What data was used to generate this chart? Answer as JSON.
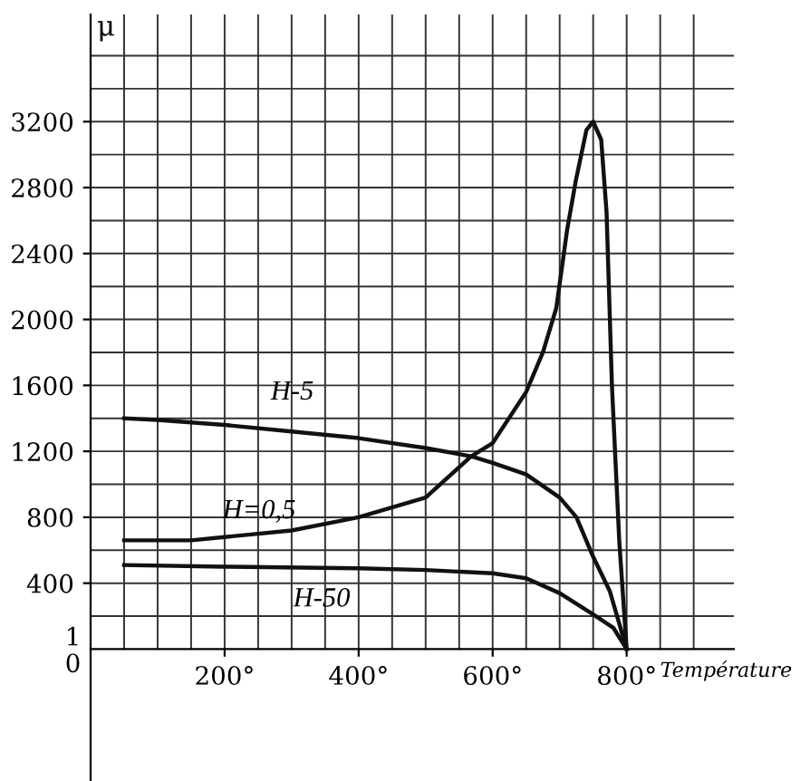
{
  "chart_data": {
    "type": "line",
    "xlabel": "Température",
    "ylabel": "μ",
    "series": [
      {
        "name": "H-5",
        "color": "#111111",
        "x": [
          50,
          100,
          200,
          300,
          400,
          500,
          568,
          600,
          650,
          700,
          725,
          750,
          775,
          800
        ],
        "values": [
          1400,
          1390,
          1360,
          1320,
          1280,
          1220,
          1170,
          1130,
          1060,
          920,
          800,
          560,
          350,
          0
        ]
      },
      {
        "name": "H=0,5",
        "color": "#111111",
        "x": [
          50,
          150,
          200,
          300,
          400,
          500,
          568,
          600,
          650,
          675,
          695,
          711,
          724,
          740,
          750,
          762,
          770,
          778,
          789,
          800
        ],
        "values": [
          660,
          660,
          680,
          720,
          800,
          920,
          1170,
          1250,
          1560,
          1800,
          2070,
          2540,
          2840,
          3150,
          3200,
          3090,
          2650,
          1600,
          650,
          0
        ]
      },
      {
        "name": "H-50",
        "color": "#111111",
        "x": [
          50,
          200,
          400,
          500,
          600,
          650,
          700,
          750,
          780,
          800
        ],
        "values": [
          510,
          500,
          490,
          480,
          460,
          430,
          340,
          210,
          130,
          0
        ]
      }
    ],
    "annotations": [
      "1",
      "0"
    ],
    "xlim": [
      0,
      960
    ],
    "ylim": [
      -800,
      3850
    ],
    "xticks": [
      {
        "value": 200,
        "label": "200°"
      },
      {
        "value": 400,
        "label": "400°"
      },
      {
        "value": 600,
        "label": "600°"
      },
      {
        "value": 800,
        "label": "800°"
      }
    ],
    "yticks": [
      400,
      800,
      1200,
      1600,
      2000,
      2400,
      2800,
      3200
    ],
    "grid": true,
    "marker": "none",
    "line_style": "solid",
    "legend": false
  }
}
